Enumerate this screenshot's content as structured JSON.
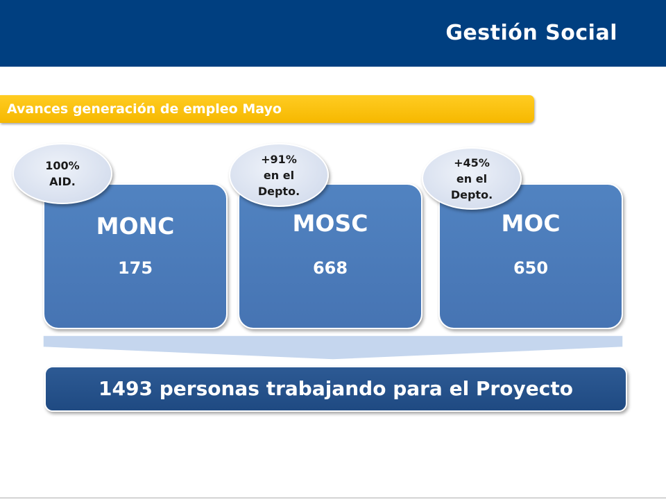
{
  "header": {
    "title": "Gestión Social",
    "color": "#003f80"
  },
  "banner": {
    "label": "Avances generación de empleo Mayo",
    "color": "#ffc20e"
  },
  "cards": [
    {
      "name": "MONC",
      "value": "175",
      "badge": "100%\nAID."
    },
    {
      "name": "MOSC",
      "value": "668",
      "badge": "+91%\nen el\nDepto."
    },
    {
      "name": "MOC",
      "value": "650",
      "badge": "+45%\nen el\nDepto."
    }
  ],
  "result": {
    "text": "1493 personas trabajando para el Proyecto"
  },
  "colors": {
    "card": "#4f81bd",
    "bubble": "#dbe3f0",
    "result": "#254f89",
    "connector": "#c5d6ee"
  }
}
